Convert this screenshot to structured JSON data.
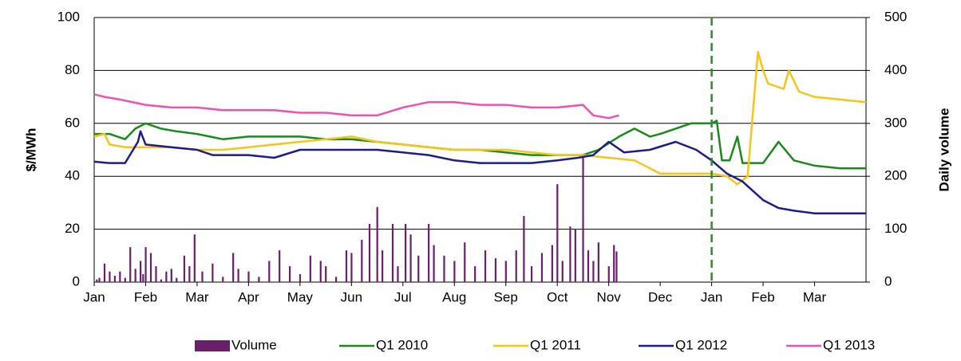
{
  "chart_data": {
    "type": "line",
    "y_label": "$/MWh",
    "y2_label": "Daily volume",
    "xlim": [
      0,
      15
    ],
    "xticks": [
      {
        "value": 0,
        "label": "Jan"
      },
      {
        "value": 1,
        "label": "Feb"
      },
      {
        "value": 2,
        "label": "Mar"
      },
      {
        "value": 3,
        "label": "Apr"
      },
      {
        "value": 4,
        "label": "May"
      },
      {
        "value": 5,
        "label": "Jun"
      },
      {
        "value": 6,
        "label": "Jul"
      },
      {
        "value": 7,
        "label": "Aug"
      },
      {
        "value": 8,
        "label": "Sep"
      },
      {
        "value": 9,
        "label": "Oct"
      },
      {
        "value": 10,
        "label": "Nov"
      },
      {
        "value": 11,
        "label": "Dec"
      },
      {
        "value": 12,
        "label": "Jan"
      },
      {
        "value": 13,
        "label": "Feb"
      },
      {
        "value": 14,
        "label": "Mar"
      }
    ],
    "ylim": [
      0,
      100
    ],
    "yticks": [
      0,
      20,
      40,
      60,
      80,
      100
    ],
    "y2lim": [
      0,
      500
    ],
    "y2ticks": [
      0,
      100,
      200,
      300,
      400,
      500
    ],
    "grid": true,
    "legend": "bottom",
    "reference_line_x": 12,
    "reference_line_color": "#2e8b2e",
    "series": [
      {
        "name": "Volume",
        "type": "bar",
        "axis": "y2",
        "color": "#6b1f6b",
        "x": [
          0.05,
          0.1,
          0.2,
          0.3,
          0.4,
          0.5,
          0.6,
          0.7,
          0.8,
          0.9,
          0.95,
          1.0,
          1.1,
          1.2,
          1.3,
          1.4,
          1.5,
          1.6,
          1.75,
          1.85,
          1.95,
          2.1,
          2.3,
          2.5,
          2.7,
          2.8,
          3.0,
          3.2,
          3.4,
          3.6,
          3.8,
          4.0,
          4.2,
          4.4,
          4.5,
          4.7,
          4.9,
          5.0,
          5.2,
          5.35,
          5.5,
          5.6,
          5.8,
          5.9,
          6.05,
          6.15,
          6.3,
          6.5,
          6.6,
          6.8,
          7.0,
          7.2,
          7.4,
          7.6,
          7.8,
          8.0,
          8.2,
          8.35,
          8.5,
          8.7,
          8.9,
          9.0,
          9.1,
          9.25,
          9.35,
          9.5,
          9.6,
          9.7,
          9.8,
          10.0,
          10.1,
          10.15
        ],
        "values": [
          5,
          8,
          35,
          20,
          12,
          20,
          8,
          66,
          25,
          40,
          15,
          66,
          55,
          30,
          5,
          20,
          25,
          8,
          50,
          30,
          90,
          20,
          35,
          10,
          55,
          25,
          20,
          10,
          40,
          60,
          30,
          15,
          50,
          40,
          30,
          10,
          60,
          55,
          80,
          110,
          142,
          60,
          110,
          30,
          110,
          90,
          50,
          110,
          70,
          50,
          40,
          75,
          30,
          60,
          45,
          40,
          60,
          125,
          30,
          55,
          70,
          185,
          40,
          105,
          100,
          235,
          60,
          40,
          75,
          30,
          70,
          58
        ]
      },
      {
        "name": "Q1 2010",
        "type": "line",
        "color": "#1a8a1a",
        "x": [
          0,
          0.3,
          0.6,
          0.8,
          1.0,
          1.3,
          1.6,
          2.0,
          2.5,
          3.0,
          3.5,
          4.0,
          4.5,
          5.0,
          5.5,
          6.0,
          6.5,
          7.0,
          7.5,
          8.0,
          8.5,
          9.0,
          9.5,
          9.8,
          10.2,
          10.5,
          10.8,
          11.0,
          11.3,
          11.6,
          12.0,
          12.1,
          12.2,
          12.35,
          12.5,
          12.6,
          12.8,
          13.0,
          13.3,
          13.6,
          14.0,
          14.5,
          15.0
        ],
        "values": [
          56,
          56,
          54,
          58,
          60,
          58,
          57,
          56,
          54,
          55,
          55,
          55,
          54,
          54,
          53,
          52,
          51,
          50,
          50,
          49,
          48,
          48,
          48,
          50,
          55,
          58,
          55,
          56,
          58,
          60,
          60,
          61,
          46,
          46,
          55,
          45,
          45,
          45,
          53,
          46,
          44,
          43,
          43
        ]
      },
      {
        "name": "Q1 2011",
        "type": "line",
        "color": "#f5c518",
        "x": [
          0,
          0.2,
          0.3,
          0.6,
          1.0,
          1.5,
          2.0,
          2.5,
          3.0,
          3.5,
          4.0,
          4.5,
          5.0,
          5.5,
          6.0,
          6.5,
          7.0,
          7.5,
          8.0,
          8.5,
          9.0,
          9.5,
          10.0,
          10.5,
          10.8,
          11.0,
          11.5,
          12.0,
          12.3,
          12.5,
          12.7,
          12.9,
          13.0,
          13.1,
          13.4,
          13.5,
          13.7,
          14.0,
          14.5,
          15.0
        ],
        "values": [
          55,
          56,
          52,
          51,
          51,
          51,
          50,
          50,
          51,
          52,
          53,
          54,
          55,
          53,
          52,
          51,
          50,
          50,
          50,
          49,
          48,
          48,
          47,
          46,
          43,
          41,
          41,
          41,
          40,
          37,
          40,
          87,
          80,
          75,
          73,
          80,
          72,
          70,
          69,
          68
        ]
      },
      {
        "name": "Q1 2012",
        "type": "line",
        "color": "#1c1c8c",
        "x": [
          0,
          0.3,
          0.6,
          0.85,
          0.9,
          1.0,
          1.5,
          2.0,
          2.3,
          3.0,
          3.5,
          4.0,
          4.5,
          5.0,
          5.5,
          6.0,
          6.5,
          7.0,
          7.5,
          8.0,
          8.5,
          9.0,
          9.4,
          9.7,
          10.0,
          10.3,
          10.8,
          11.3,
          11.7,
          12.0,
          12.3,
          12.6,
          13.0,
          13.3,
          13.6,
          14.0,
          15.0
        ],
        "values": [
          45.5,
          45,
          45,
          53,
          57,
          52,
          51,
          50,
          48,
          48,
          47,
          50,
          50,
          50,
          50,
          49,
          48,
          46,
          45,
          45,
          45,
          46,
          47,
          48,
          53,
          49,
          50,
          53,
          50,
          46,
          41,
          38,
          31,
          28,
          27,
          26,
          26
        ]
      },
      {
        "name": "Q1 2013",
        "type": "line",
        "color": "#f050b0",
        "x": [
          0,
          0.2,
          0.5,
          1.0,
          1.5,
          2.0,
          2.5,
          3.0,
          3.5,
          4.0,
          4.5,
          5.0,
          5.5,
          6.0,
          6.5,
          7.0,
          7.5,
          8.0,
          8.5,
          9.0,
          9.5,
          9.7,
          10.0,
          10.2
        ],
        "values": [
          71,
          70,
          69,
          67,
          66,
          66,
          65,
          65,
          65,
          64,
          64,
          63,
          63,
          66,
          68,
          68,
          67,
          67,
          66,
          66,
          67,
          63,
          62,
          63
        ]
      }
    ]
  }
}
